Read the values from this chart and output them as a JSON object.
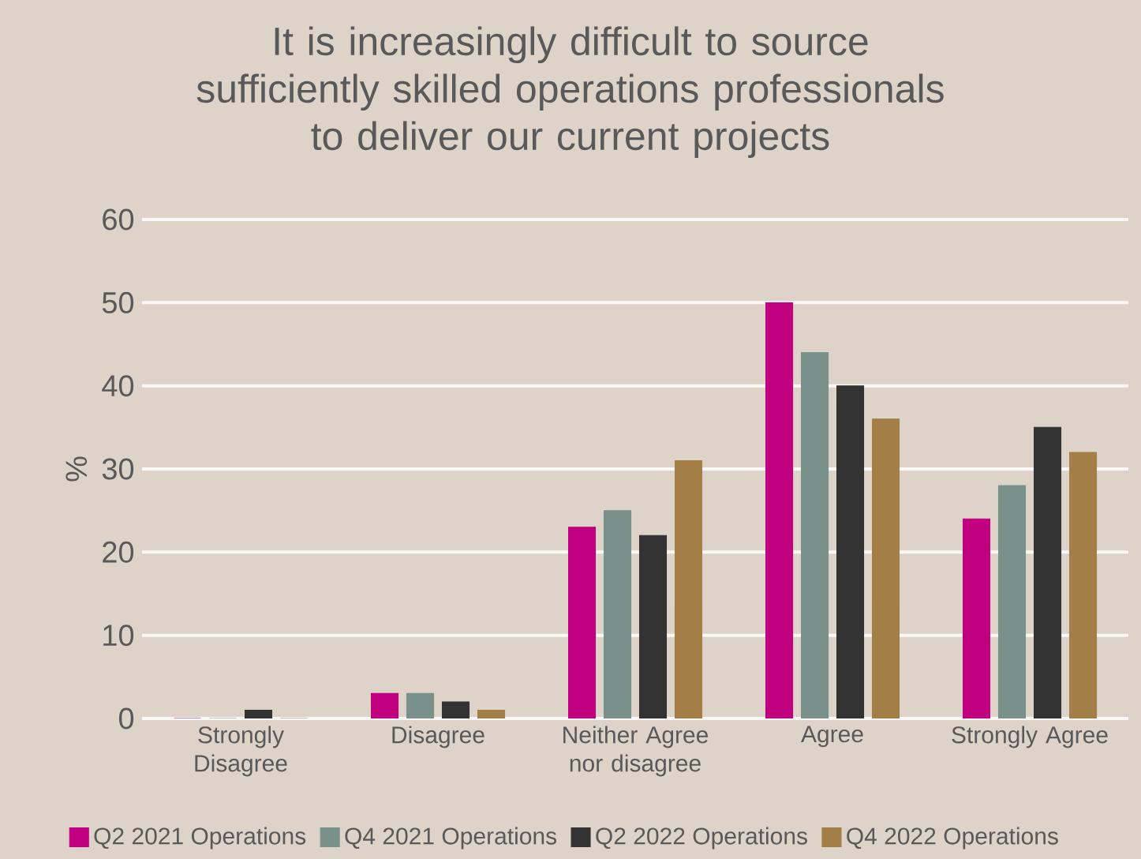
{
  "chart_data": {
    "type": "bar",
    "title": "It is increasingly difficult to source sufficiently skilled operations  professionals to deliver our current projects",
    "ylabel": "%",
    "categories": [
      "Strongly Disagree",
      "Disagree",
      "Neither Agree nor disagree",
      "Agree",
      "Strongly Agree"
    ],
    "series": [
      {
        "name": "Q2 2021 Operations",
        "color": "#c0007f",
        "values": [
          0,
          3,
          23,
          50,
          24
        ]
      },
      {
        "name": "Q4 2021 Operations",
        "color": "#7a918b",
        "values": [
          0,
          3,
          25,
          44,
          28
        ]
      },
      {
        "name": "Q2 2022 Operations",
        "color": "#333333",
        "values": [
          1,
          2,
          22,
          40,
          35
        ]
      },
      {
        "name": "Q4 2022 Operations",
        "color": "#a37e46",
        "values": [
          0,
          1,
          31,
          36,
          32
        ]
      }
    ],
    "ylim": [
      0,
      60
    ],
    "yticks": [
      0,
      10,
      20,
      30,
      40,
      50,
      60
    ],
    "grid": "y",
    "legend": "bottom"
  }
}
